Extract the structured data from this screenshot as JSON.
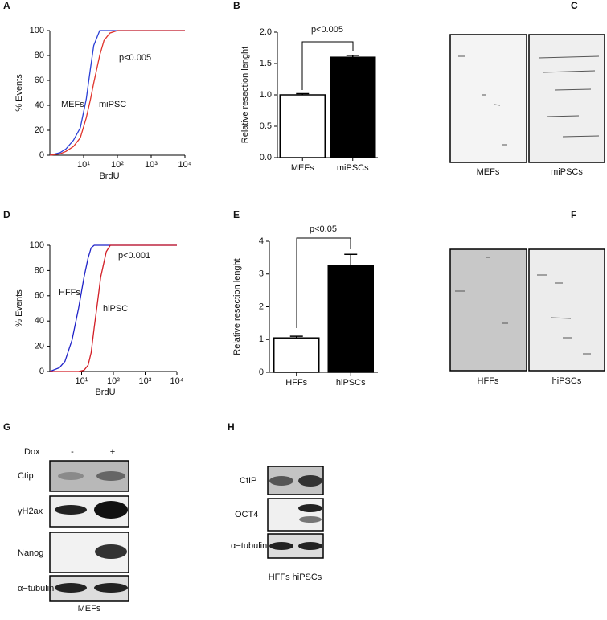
{
  "chart_data": [
    {
      "type": "line",
      "panel": "A",
      "xlabel": "BrdU",
      "ylabel": "% Events",
      "xscale": "log",
      "x": [
        1,
        2,
        3,
        5,
        8,
        12,
        16,
        20,
        30,
        40,
        60,
        100,
        1000,
        10000
      ],
      "series": [
        {
          "name": "MEFs",
          "color": "#2a3fd6",
          "values": [
            0,
            2,
            5,
            12,
            22,
            45,
            70,
            88,
            100,
            100,
            100,
            100,
            100,
            100
          ]
        },
        {
          "name": "miPSC",
          "color": "#e0322a",
          "values": [
            0,
            1,
            3,
            7,
            14,
            30,
            45,
            58,
            80,
            92,
            98,
            100,
            100,
            100
          ]
        }
      ],
      "xlim": [
        1,
        10000
      ],
      "xticks": [
        {
          "value": 10,
          "label": "10¹"
        },
        {
          "value": 100,
          "label": "10²"
        },
        {
          "value": 1000,
          "label": "10³"
        },
        {
          "value": 10000,
          "label": "10⁴"
        }
      ],
      "ylim": [
        0,
        100
      ],
      "yticks": [
        0,
        20,
        40,
        60,
        80,
        100
      ],
      "annotations": [
        "p<0.005"
      ]
    },
    {
      "type": "bar",
      "panel": "B",
      "ylabel": "Relative resection lenght",
      "categories": [
        "MEFs",
        "miPSCs"
      ],
      "values": [
        1.0,
        1.6
      ],
      "errors": [
        0.02,
        0.03
      ],
      "colors": [
        "#ffffff",
        "#000000"
      ],
      "ylim": [
        0,
        2
      ],
      "yticks": [
        {
          "value": 0,
          "label": "0.0"
        },
        {
          "value": 0.5,
          "label": "0.5"
        },
        {
          "value": 1,
          "label": "1.0"
        },
        {
          "value": 1.5,
          "label": "1.5"
        },
        {
          "value": 2,
          "label": "2.0"
        }
      ],
      "annotations": [
        "p<0.005"
      ]
    },
    {
      "type": "line",
      "panel": "D",
      "xlabel": "BrdU",
      "ylabel": "% Events",
      "xscale": "log",
      "x": [
        1,
        2,
        3,
        5,
        8,
        12,
        16,
        20,
        25,
        30,
        40,
        60,
        80,
        100,
        1000,
        10000
      ],
      "series": [
        {
          "name": "HFFs",
          "color": "#1f22c8",
          "values": [
            0,
            3,
            8,
            25,
            50,
            75,
            90,
            98,
            100,
            100,
            100,
            100,
            100,
            100,
            100,
            100
          ]
        },
        {
          "name": "hiPSC",
          "color": "#d21c24",
          "values": [
            0,
            0,
            0,
            0,
            0,
            1,
            5,
            15,
            35,
            50,
            75,
            95,
            100,
            100,
            100,
            100
          ]
        }
      ],
      "xlim": [
        1,
        10000
      ],
      "xticks": [
        {
          "value": 10,
          "label": "10¹"
        },
        {
          "value": 100,
          "label": "10²"
        },
        {
          "value": 1000,
          "label": "10³"
        },
        {
          "value": 10000,
          "label": "10⁴"
        }
      ],
      "ylim": [
        0,
        100
      ],
      "yticks": [
        0,
        20,
        40,
        60,
        80,
        100
      ],
      "annotations": [
        "p<0.001"
      ]
    },
    {
      "type": "bar",
      "panel": "E",
      "ylabel": "Relative resection lenght",
      "categories": [
        "HFFs",
        "hiPSCs"
      ],
      "values": [
        1.05,
        3.25
      ],
      "errors": [
        0.05,
        0.35
      ],
      "colors": [
        "#ffffff",
        "#000000"
      ],
      "ylim": [
        0,
        4
      ],
      "yticks": [
        0,
        1,
        2,
        3,
        4
      ],
      "annotations": [
        "p<0.05"
      ]
    }
  ],
  "panel_c": {
    "panel": "C",
    "labels": [
      "MEFs",
      "miPSCs"
    ]
  },
  "panel_f": {
    "panel": "F",
    "labels": [
      "HFFs",
      "hiPSCs"
    ]
  },
  "panel_g": {
    "panel": "G",
    "treatment": "Dox",
    "conditions": [
      "-",
      "+"
    ],
    "rows": [
      "Ctip",
      "γH2ax",
      "Nanog",
      "α−tubulin"
    ],
    "caption": "MEFs"
  },
  "panel_h": {
    "panel": "H",
    "rows": [
      "CtIP",
      "OCT4",
      "α−tubulin"
    ],
    "caption": "HFFs hiPSCs"
  }
}
